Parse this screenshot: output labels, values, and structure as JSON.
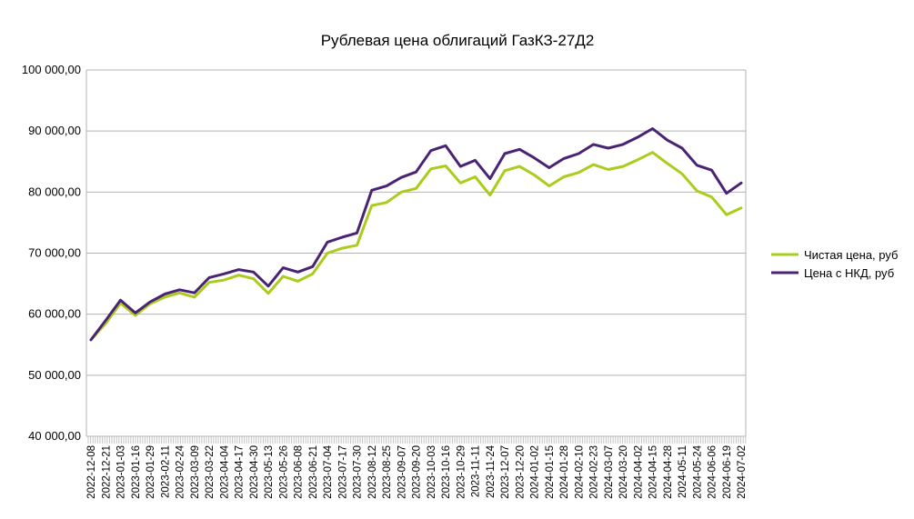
{
  "chart_data": {
    "type": "line",
    "title": "Рублевая цена облигаций ГазКЗ-27Д2",
    "xlabel": "",
    "ylabel": "",
    "ylim": [
      40000,
      100000
    ],
    "yticks": [
      "40 000,00",
      "50 000,00",
      "60 000,00",
      "70 000,00",
      "80 000,00",
      "90 000,00",
      "100 000,00"
    ],
    "grid": "horizontal",
    "legend": "right",
    "x": [
      "2022-12-08",
      "2022-12-21",
      "2023-01-03",
      "2023-01-16",
      "2023-01-29",
      "2023-02-11",
      "2023-02-24",
      "2023-03-09",
      "2023-03-22",
      "2023-04-04",
      "2023-04-17",
      "2023-04-30",
      "2023-05-13",
      "2023-05-26",
      "2023-06-08",
      "2023-06-21",
      "2023-07-04",
      "2023-07-17",
      "2023-07-30",
      "2023-08-12",
      "2023-08-25",
      "2023-09-07",
      "2023-09-20",
      "2023-10-03",
      "2023-10-16",
      "2023-10-29",
      "2023-11-11",
      "2023-11-24",
      "2023-12-07",
      "2023-12-20",
      "2024-01-02",
      "2024-01-15",
      "2024-01-28",
      "2024-02-10",
      "2024-02-23",
      "2024-03-07",
      "2024-03-20",
      "2024-04-02",
      "2024-04-15",
      "2024-04-28",
      "2024-05-11",
      "2024-05-24",
      "2024-06-06",
      "2024-06-19",
      "2024-07-02"
    ],
    "series": [
      {
        "name": "Чистая цена, руб",
        "color": "#aacc1a",
        "values": [
          55800,
          58500,
          61800,
          59800,
          61700,
          62800,
          63500,
          62800,
          65200,
          65600,
          66400,
          65800,
          63400,
          66200,
          65400,
          66600,
          70000,
          70800,
          71300,
          77800,
          78300,
          80000,
          80600,
          83800,
          84300,
          81500,
          82500,
          79500,
          83500,
          84200,
          82800,
          81000,
          82500,
          83200,
          84500,
          83700,
          84200,
          85300,
          86500,
          84700,
          83000,
          80200,
          79200,
          76300,
          77400
        ]
      },
      {
        "name": "Цена с НКД, руб",
        "color": "#4b2374",
        "values": [
          55800,
          59000,
          62300,
          60200,
          62000,
          63300,
          64000,
          63500,
          66000,
          66600,
          67300,
          66900,
          64600,
          67600,
          66900,
          67800,
          71800,
          72600,
          73300,
          80300,
          81000,
          82400,
          83300,
          86800,
          87600,
          84200,
          85200,
          82200,
          86300,
          87000,
          85600,
          84000,
          85500,
          86300,
          87800,
          87200,
          87800,
          89000,
          90400,
          88500,
          87200,
          84400,
          83600,
          79800,
          81500
        ]
      }
    ]
  }
}
